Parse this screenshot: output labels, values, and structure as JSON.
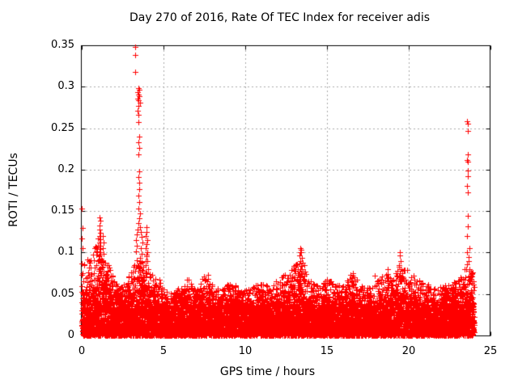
{
  "chart_data": {
    "type": "scatter",
    "title": "Day 270 of 2016, Rate Of TEC Index for receiver adis",
    "xlabel": "GPS time / hours",
    "ylabel": "ROTI / TECUs",
    "xlim": [
      0,
      25
    ],
    "ylim": [
      0,
      0.35
    ],
    "xticks": [
      "0",
      "5",
      "10",
      "15",
      "20",
      "25"
    ],
    "yticks": [
      "0",
      "0.05",
      "0.1",
      "0.15",
      "0.2",
      "0.25",
      "0.3",
      "0.35"
    ],
    "grid": true,
    "legend": null,
    "marker": "plus",
    "series_color": "#ff0000",
    "grid_color": "#a8a8a8",
    "axis_color": "#000000",
    "data_x_range": [
      0,
      24
    ],
    "band_envelope": {
      "note": "dense noise band of ROTI values; hours sampled every 0.5 h from 0 to 24",
      "hours_step": 0.5,
      "solid_top": [
        0.055,
        0.048,
        0.065,
        0.055,
        0.042,
        0.04,
        0.045,
        0.055,
        0.05,
        0.042,
        0.036,
        0.036,
        0.038,
        0.042,
        0.036,
        0.042,
        0.038,
        0.036,
        0.04,
        0.038,
        0.036,
        0.038,
        0.04,
        0.038,
        0.04,
        0.044,
        0.05,
        0.05,
        0.04,
        0.038,
        0.04,
        0.038,
        0.038,
        0.044,
        0.04,
        0.036,
        0.04,
        0.044,
        0.042,
        0.048,
        0.042,
        0.038,
        0.04,
        0.036,
        0.038,
        0.04,
        0.042,
        0.045,
        0.042
      ],
      "sparse_top": [
        0.1,
        0.09,
        0.12,
        0.09,
        0.07,
        0.06,
        0.08,
        0.1,
        0.1,
        0.075,
        0.055,
        0.05,
        0.06,
        0.07,
        0.055,
        0.075,
        0.06,
        0.055,
        0.065,
        0.06,
        0.055,
        0.06,
        0.065,
        0.06,
        0.068,
        0.075,
        0.085,
        0.09,
        0.065,
        0.06,
        0.068,
        0.062,
        0.06,
        0.075,
        0.065,
        0.058,
        0.065,
        0.078,
        0.068,
        0.095,
        0.075,
        0.068,
        0.065,
        0.06,
        0.06,
        0.065,
        0.068,
        0.085,
        0.075
      ]
    },
    "outlier_points": [
      [
        3.27,
        0.348
      ],
      [
        3.26,
        0.338
      ],
      [
        3.28,
        0.318
      ],
      [
        3.45,
        0.298
      ],
      [
        3.5,
        0.296
      ],
      [
        3.42,
        0.293
      ],
      [
        3.47,
        0.291
      ],
      [
        3.52,
        0.289
      ],
      [
        3.44,
        0.286
      ],
      [
        3.49,
        0.284
      ],
      [
        3.55,
        0.281
      ],
      [
        3.46,
        0.277
      ],
      [
        3.43,
        0.271
      ],
      [
        3.48,
        0.266
      ],
      [
        3.46,
        0.257
      ],
      [
        3.5,
        0.24
      ],
      [
        3.47,
        0.233
      ],
      [
        3.52,
        0.226
      ],
      [
        3.49,
        0.218
      ],
      [
        3.51,
        0.198
      ],
      [
        3.48,
        0.191
      ],
      [
        3.53,
        0.184
      ],
      [
        3.5,
        0.176
      ],
      [
        3.46,
        0.169
      ],
      [
        3.52,
        0.161
      ],
      [
        3.49,
        0.153
      ],
      [
        3.55,
        0.147
      ],
      [
        3.5,
        0.141
      ],
      [
        3.45,
        0.136
      ],
      [
        3.55,
        0.131
      ],
      [
        3.4,
        0.128
      ],
      [
        3.6,
        0.125
      ],
      [
        3.35,
        0.122
      ],
      [
        3.65,
        0.119
      ],
      [
        3.3,
        0.115
      ],
      [
        3.7,
        0.112
      ],
      [
        3.38,
        0.108
      ],
      [
        3.62,
        0.105
      ],
      [
        3.33,
        0.101
      ],
      [
        3.68,
        0.098
      ],
      [
        3.58,
        0.094
      ],
      [
        3.36,
        0.091
      ],
      [
        3.64,
        0.088
      ],
      [
        3.41,
        0.085
      ],
      [
        3.56,
        0.081
      ],
      [
        3.72,
        0.078
      ],
      [
        3.75,
        0.073
      ],
      [
        3.95,
        0.131
      ],
      [
        3.98,
        0.125
      ],
      [
        3.92,
        0.12
      ],
      [
        4.0,
        0.115
      ],
      [
        3.96,
        0.11
      ],
      [
        3.9,
        0.105
      ],
      [
        4.02,
        0.1
      ],
      [
        3.94,
        0.096
      ],
      [
        3.99,
        0.09
      ],
      [
        3.93,
        0.085
      ],
      [
        4.04,
        0.08
      ],
      [
        3.97,
        0.075
      ],
      [
        0.02,
        0.153
      ],
      [
        0.04,
        0.13
      ],
      [
        0.02,
        0.117
      ],
      [
        0.05,
        0.105
      ],
      [
        0.03,
        0.075
      ],
      [
        0.45,
        0.09
      ],
      [
        0.47,
        0.082
      ],
      [
        0.43,
        0.072
      ],
      [
        0.5,
        0.065
      ],
      [
        0.9,
        0.085
      ],
      [
        0.95,
        0.1
      ],
      [
        1.0,
        0.09
      ],
      [
        1.1,
        0.142
      ],
      [
        1.12,
        0.138
      ],
      [
        1.08,
        0.133
      ],
      [
        1.11,
        0.128
      ],
      [
        1.14,
        0.124
      ],
      [
        1.09,
        0.12
      ],
      [
        1.12,
        0.116
      ],
      [
        1.07,
        0.112
      ],
      [
        1.13,
        0.108
      ],
      [
        1.1,
        0.104
      ],
      [
        1.15,
        0.1
      ],
      [
        1.05,
        0.096
      ],
      [
        1.1,
        0.092
      ],
      [
        1.2,
        0.088
      ],
      [
        1.25,
        0.082
      ],
      [
        1.05,
        0.08
      ],
      [
        1.3,
        0.12
      ],
      [
        1.32,
        0.112
      ],
      [
        1.28,
        0.105
      ],
      [
        1.34,
        0.098
      ],
      [
        1.3,
        0.09
      ],
      [
        1.27,
        0.083
      ],
      [
        1.33,
        0.077
      ],
      [
        1.55,
        0.085
      ],
      [
        1.6,
        0.078
      ],
      [
        1.57,
        0.07
      ],
      [
        7.7,
        0.073
      ],
      [
        7.72,
        0.068
      ],
      [
        12.95,
        0.07
      ],
      [
        13.05,
        0.075
      ],
      [
        13.15,
        0.068
      ],
      [
        13.2,
        0.08
      ],
      [
        13.25,
        0.073
      ],
      [
        13.35,
        0.105
      ],
      [
        13.4,
        0.103
      ],
      [
        13.38,
        0.1
      ],
      [
        13.42,
        0.1
      ],
      [
        13.3,
        0.097
      ],
      [
        13.45,
        0.094
      ],
      [
        13.36,
        0.09
      ],
      [
        13.33,
        0.087
      ],
      [
        13.4,
        0.084
      ],
      [
        13.47,
        0.08
      ],
      [
        13.31,
        0.077
      ],
      [
        13.44,
        0.074
      ],
      [
        13.37,
        0.07
      ],
      [
        13.5,
        0.068
      ],
      [
        13.28,
        0.065
      ],
      [
        13.6,
        0.072
      ],
      [
        13.65,
        0.065
      ],
      [
        16.6,
        0.075
      ],
      [
        16.63,
        0.07
      ],
      [
        17.9,
        0.072
      ],
      [
        18.7,
        0.08
      ],
      [
        18.73,
        0.074
      ],
      [
        19.45,
        0.1
      ],
      [
        19.47,
        0.097
      ],
      [
        19.5,
        0.09
      ],
      [
        19.43,
        0.085
      ],
      [
        19.52,
        0.08
      ],
      [
        19.48,
        0.075
      ],
      [
        19.55,
        0.07
      ],
      [
        19.4,
        0.068
      ],
      [
        20.3,
        0.072
      ],
      [
        23.58,
        0.258
      ],
      [
        23.6,
        0.255
      ],
      [
        23.59,
        0.247
      ],
      [
        23.6,
        0.218
      ],
      [
        23.58,
        0.212
      ],
      [
        23.61,
        0.21
      ],
      [
        23.59,
        0.199
      ],
      [
        23.6,
        0.192
      ],
      [
        23.58,
        0.18
      ],
      [
        23.6,
        0.173
      ],
      [
        23.59,
        0.144
      ],
      [
        23.6,
        0.132
      ],
      [
        23.58,
        0.12
      ],
      [
        23.7,
        0.105
      ],
      [
        23.58,
        0.1
      ],
      [
        23.68,
        0.095
      ],
      [
        23.65,
        0.09
      ],
      [
        23.55,
        0.086
      ],
      [
        23.5,
        0.08
      ],
      [
        23.72,
        0.078
      ],
      [
        23.75,
        0.072
      ]
    ]
  }
}
